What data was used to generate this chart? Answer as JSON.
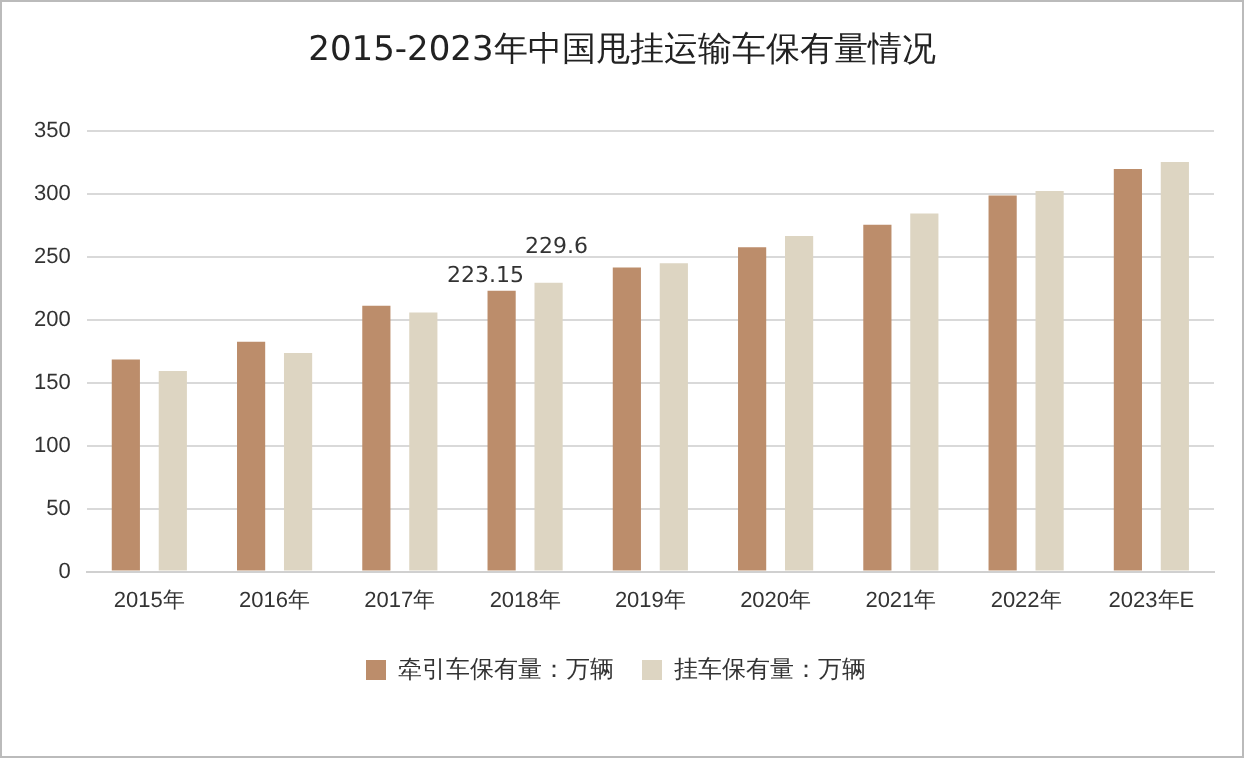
{
  "chart_data": {
    "type": "bar",
    "title": "2015-2023年中国甩挂运输车保有量情况",
    "categories": [
      "2015年",
      "2016年",
      "2017年",
      "2018年",
      "2019年",
      "2020年",
      "2021年",
      "2022年",
      "2023年E"
    ],
    "series": [
      {
        "name": "牵引车保有量：万辆",
        "color": "#bc8d6b",
        "values": [
          168.5,
          182.7,
          211.3,
          223.15,
          241.7,
          257.7,
          275.6,
          298.8,
          320
        ],
        "value_labels": [
          null,
          null,
          null,
          "223.15",
          null,
          null,
          null,
          null,
          null
        ]
      },
      {
        "name": "挂车保有量：万辆",
        "color": "#ddd5c2",
        "values": [
          159.5,
          173.8,
          206,
          229.6,
          245,
          266.7,
          284.5,
          302.4,
          325.6
        ],
        "value_labels": [
          null,
          null,
          null,
          "229.6",
          null,
          null,
          null,
          null,
          null
        ]
      }
    ],
    "ylim": [
      0,
      350
    ],
    "yticks": [
      0,
      50,
      100,
      150,
      200,
      250,
      300,
      350
    ],
    "grid": "y",
    "legend": "bottom"
  }
}
